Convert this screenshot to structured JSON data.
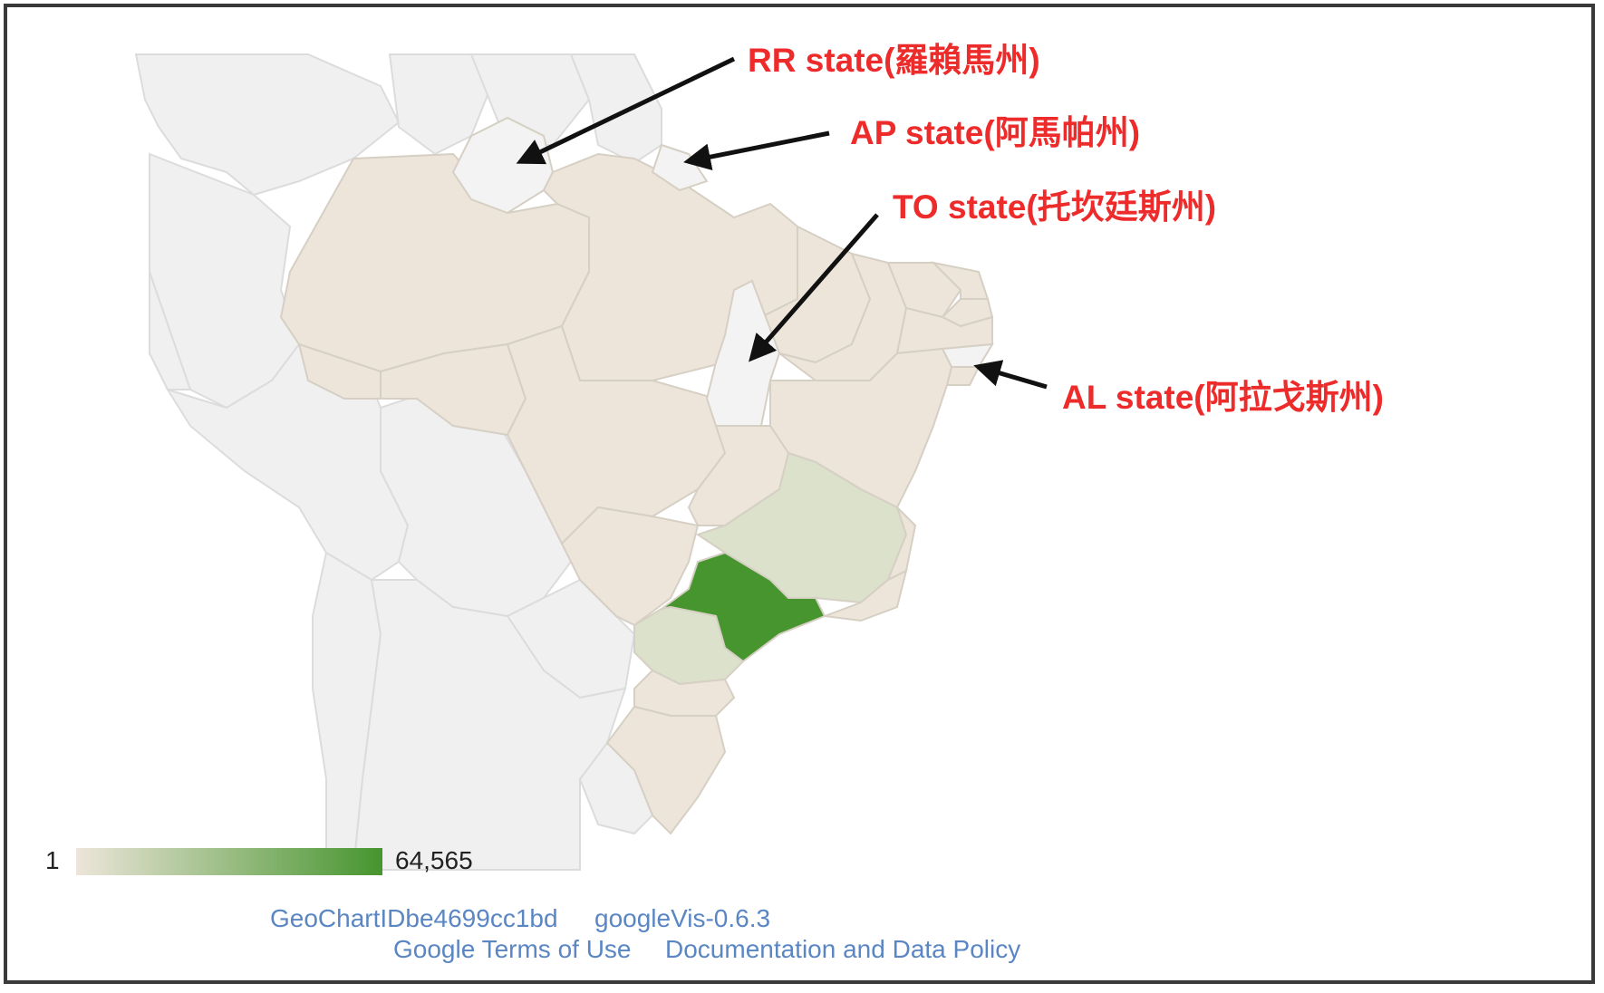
{
  "map": {
    "region": "Brazil",
    "resolution": "provinces",
    "highlighted_states": [
      {
        "name": "SP",
        "level": "max"
      },
      {
        "name": "MG",
        "level": "low"
      },
      {
        "name": "PR",
        "level": "low"
      }
    ],
    "no_data_states": [
      "RR",
      "AP",
      "TO",
      "AL"
    ],
    "colors": {
      "max": "#46952e",
      "low": "#dbe1cb",
      "base": "#ede5da",
      "no_data": "#f3f3f3",
      "outside": "#f0f0f0",
      "border": "#d9d9d9"
    }
  },
  "annotations": [
    {
      "id": "rr",
      "label": "RR state(羅賴馬州)"
    },
    {
      "id": "ap",
      "label": "AP state(阿馬帕州)"
    },
    {
      "id": "to",
      "label": "TO state(托坎廷斯州)"
    },
    {
      "id": "al",
      "label": "AL state(阿拉戈斯州)"
    }
  ],
  "annotation_color": "#ee2b2b",
  "legend": {
    "min_label": "1",
    "max_label": "64,565",
    "min_color": "#ede5da",
    "max_color": "#46952e"
  },
  "footer": {
    "chart_id": "GeoChartIDbe4699cc1bd",
    "version": "googleVis-0.6.3",
    "terms": "Google Terms of Use",
    "policy": "Documentation and Data Policy"
  }
}
